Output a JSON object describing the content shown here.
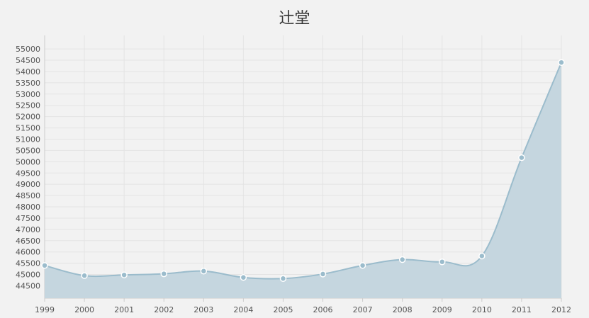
{
  "chart_data": {
    "type": "area",
    "title": "辻堂",
    "xlabel": "",
    "ylabel": "",
    "x": [
      "1999",
      "2000",
      "2001",
      "2002",
      "2003",
      "2004",
      "2005",
      "2006",
      "2007",
      "2008",
      "2009",
      "2010",
      "2011",
      "2012"
    ],
    "series": [
      {
        "values": [
          45400,
          44950,
          44980,
          45030,
          45150,
          44870,
          44820,
          45020,
          45400,
          45660,
          45560,
          45820,
          50180,
          54400
        ]
      }
    ],
    "y_ticks": [
      44500,
      45000,
      45500,
      46000,
      46500,
      47000,
      47500,
      48000,
      48500,
      49000,
      49500,
      50000,
      50500,
      51000,
      51500,
      52000,
      52500,
      53000,
      53500,
      54000,
      54500,
      55000
    ],
    "ylim": [
      43950,
      55600
    ],
    "grid": true,
    "colors": {
      "fill": "#c5d6df",
      "line": "#9bbccc",
      "marker_fill": "#9bbccc",
      "marker_stroke": "#ffffff",
      "grid": "#e4e4e4",
      "axis": "#cccccc"
    }
  }
}
